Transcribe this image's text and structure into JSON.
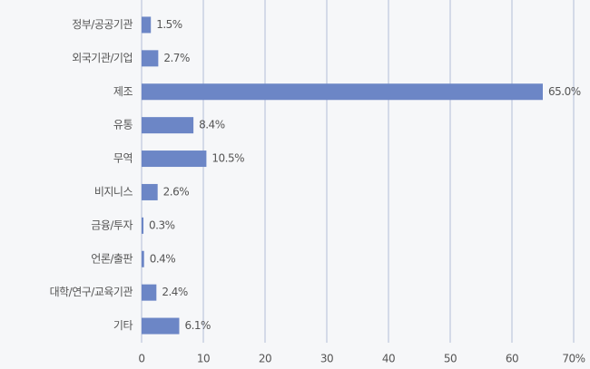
{
  "chart_data": {
    "type": "bar",
    "orientation": "horizontal",
    "categories": [
      "정부/공공기관",
      "외국기관/기업",
      "제조",
      "유통",
      "무역",
      "비지니스",
      "금융/투자",
      "언론/출판",
      "대학/연구/교육기관",
      "기타"
    ],
    "values": [
      1.5,
      2.7,
      65.0,
      8.4,
      10.5,
      2.6,
      0.3,
      0.4,
      2.4,
      6.1
    ],
    "value_labels": [
      "1.5%",
      "2.7%",
      "65.0%",
      "8.4%",
      "10.5%",
      "2.6%",
      "0.3%",
      "0.4%",
      "2.4%",
      "6.1%"
    ],
    "color": "#6c86c6",
    "xlim": [
      0,
      70
    ],
    "xticks": [
      0,
      10,
      20,
      30,
      40,
      50,
      60,
      {
        "value": 70,
        "label": "70%"
      }
    ],
    "grid": true
  }
}
